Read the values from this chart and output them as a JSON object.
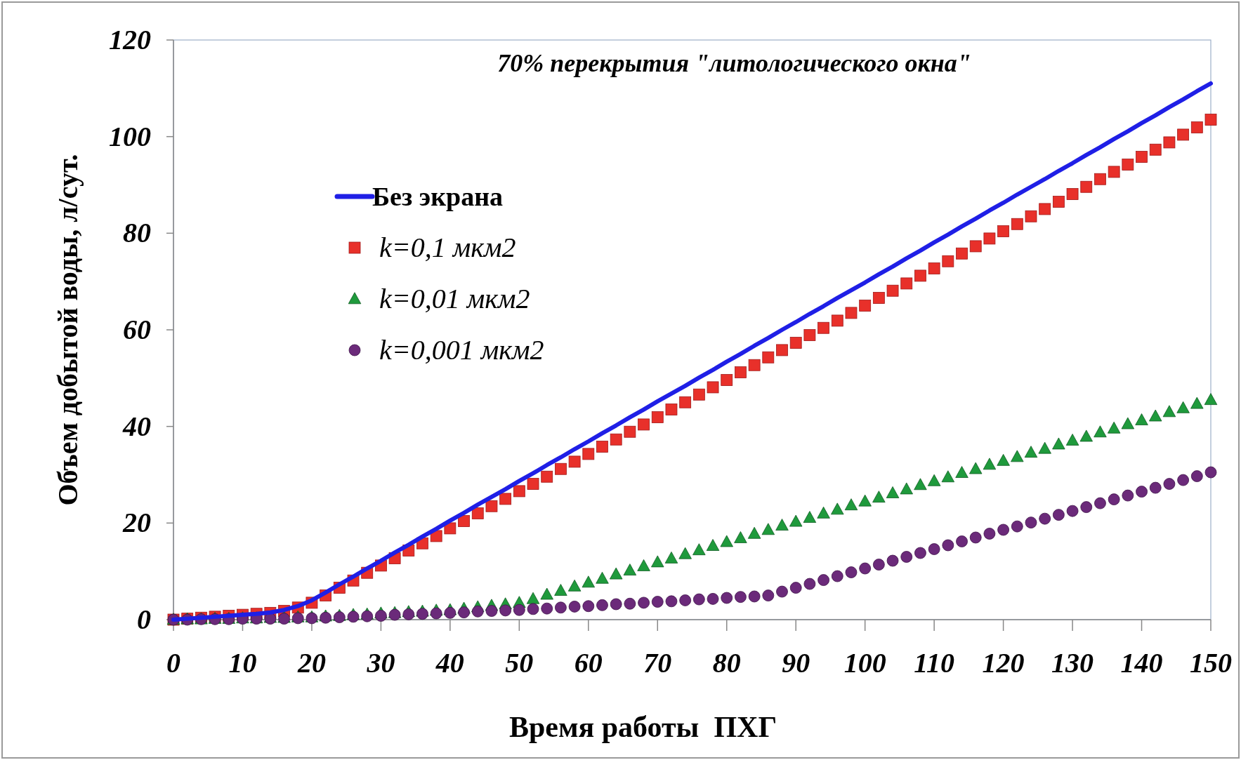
{
  "chart_data": {
    "type": "line",
    "title": "70% перекрытия \"литологического окна\"",
    "xlabel": "Время работы  ПХГ",
    "ylabel": "Объем добытой воды, л/сут.",
    "x": [
      0,
      2,
      4,
      6,
      8,
      10,
      12,
      14,
      16,
      18,
      20,
      22,
      24,
      26,
      28,
      30,
      32,
      34,
      36,
      38,
      40,
      42,
      44,
      46,
      48,
      50,
      52,
      54,
      56,
      58,
      60,
      62,
      64,
      66,
      68,
      70,
      72,
      74,
      76,
      78,
      80,
      82,
      84,
      86,
      88,
      90,
      92,
      94,
      96,
      98,
      100,
      102,
      104,
      106,
      108,
      110,
      112,
      114,
      116,
      118,
      120,
      122,
      124,
      126,
      128,
      130,
      132,
      134,
      136,
      138,
      140,
      142,
      144,
      146,
      148,
      150
    ],
    "series": [
      {
        "name": "Без экрана",
        "marker": "none",
        "line_style": "solid",
        "color": "#1f1fe6",
        "values": [
          0,
          0.2,
          0.4,
          0.6,
          0.8,
          1,
          1.2,
          1.5,
          2,
          2.8,
          4,
          5.6,
          7.3,
          8.9,
          10.6,
          12.2,
          13.9,
          15.5,
          17.2,
          18.8,
          20.5,
          22.1,
          23.8,
          25.4,
          27.0,
          28.7,
          30.3,
          32.0,
          33.6,
          35.3,
          36.9,
          38.6,
          40.2,
          41.9,
          43.5,
          45.2,
          46.8,
          48.4,
          50.1,
          51.7,
          53.4,
          55.0,
          56.7,
          58.3,
          60.0,
          61.6,
          63.3,
          64.9,
          66.6,
          68.2,
          69.8,
          71.5,
          73.1,
          74.8,
          76.4,
          78.1,
          79.7,
          81.4,
          83.0,
          84.7,
          86.3,
          88.0,
          89.6,
          91.2,
          92.9,
          94.5,
          96.2,
          97.8,
          99.5,
          101.1,
          102.8,
          104.4,
          106.1,
          107.7,
          109.4,
          111.0
        ]
      },
      {
        "name": "k=0,1 мкм2",
        "type": "scatter",
        "marker": "square",
        "color": "#e8302a",
        "values": [
          0,
          0.2,
          0.4,
          0.6,
          0.8,
          1,
          1.2,
          1.4,
          1.8,
          2.5,
          3.5,
          5.0,
          6.6,
          8.1,
          9.7,
          11.2,
          12.7,
          14.3,
          15.8,
          17.3,
          18.9,
          20.4,
          22.0,
          23.5,
          25.0,
          26.6,
          28.1,
          29.6,
          31.2,
          32.7,
          34.3,
          35.8,
          37.3,
          38.9,
          40.4,
          41.9,
          43.5,
          45.0,
          46.6,
          48.1,
          49.6,
          51.2,
          52.7,
          54.3,
          55.8,
          57.3,
          58.9,
          60.4,
          61.9,
          63.5,
          65.0,
          66.6,
          68.1,
          69.6,
          71.2,
          72.7,
          74.2,
          75.8,
          77.3,
          78.9,
          80.4,
          81.9,
          83.5,
          85.0,
          86.5,
          88.1,
          89.6,
          91.2,
          92.7,
          94.2,
          95.8,
          97.3,
          98.8,
          100.4,
          101.9,
          103.5
        ]
      },
      {
        "name": "k=0,01 мкм2",
        "type": "scatter",
        "marker": "triangle",
        "color": "#1f9a3c",
        "values": [
          0,
          0.1,
          0.1,
          0.2,
          0.2,
          0.3,
          0.3,
          0.4,
          0.4,
          0.5,
          0.5,
          0.7,
          0.8,
          1.0,
          1.1,
          1.3,
          1.4,
          1.6,
          1.7,
          1.9,
          2.0,
          2.3,
          2.6,
          2.9,
          3.2,
          3.5,
          4.3,
          5.2,
          6.0,
          6.9,
          7.7,
          8.5,
          9.4,
          10.2,
          11.1,
          11.9,
          12.7,
          13.6,
          14.4,
          15.3,
          16.1,
          16.9,
          17.8,
          18.6,
          19.5,
          20.3,
          21.1,
          22.0,
          22.8,
          23.7,
          24.5,
          25.3,
          26.2,
          27.0,
          27.9,
          28.7,
          29.5,
          30.4,
          31.2,
          32.1,
          32.9,
          33.7,
          34.6,
          35.4,
          36.3,
          37.1,
          37.9,
          38.8,
          39.6,
          40.5,
          41.3,
          42.1,
          43.0,
          43.8,
          44.7,
          45.5
        ]
      },
      {
        "name": "k=0,001 мкм2",
        "type": "scatter",
        "marker": "circle",
        "color": "#6b2a7a",
        "values": [
          0,
          0,
          0.1,
          0.1,
          0.1,
          0.2,
          0.2,
          0.2,
          0.2,
          0.3,
          0.3,
          0.4,
          0.5,
          0.6,
          0.7,
          0.8,
          1.0,
          1.1,
          1.2,
          1.3,
          1.4,
          1.5,
          1.7,
          1.8,
          1.9,
          2.0,
          2.2,
          2.3,
          2.5,
          2.7,
          2.8,
          3.0,
          3.2,
          3.3,
          3.5,
          3.7,
          3.8,
          4.0,
          4.2,
          4.3,
          4.5,
          4.7,
          4.8,
          5.0,
          5.8,
          6.6,
          7.4,
          8.2,
          9.0,
          9.8,
          10.6,
          11.4,
          12.2,
          13.0,
          13.8,
          14.6,
          15.4,
          16.2,
          17.0,
          17.8,
          18.6,
          19.3,
          20.1,
          20.9,
          21.7,
          22.5,
          23.3,
          24.1,
          24.9,
          25.7,
          26.5,
          27.3,
          28.1,
          28.9,
          29.7,
          30.5
        ]
      }
    ],
    "xlim": [
      0,
      150
    ],
    "xticks": [
      0,
      10,
      20,
      30,
      40,
      50,
      60,
      70,
      80,
      90,
      100,
      110,
      120,
      130,
      140,
      150
    ],
    "ylim": [
      0,
      120
    ],
    "yticks": [
      0,
      20,
      40,
      60,
      80,
      100,
      120
    ],
    "legend": "top left"
  }
}
